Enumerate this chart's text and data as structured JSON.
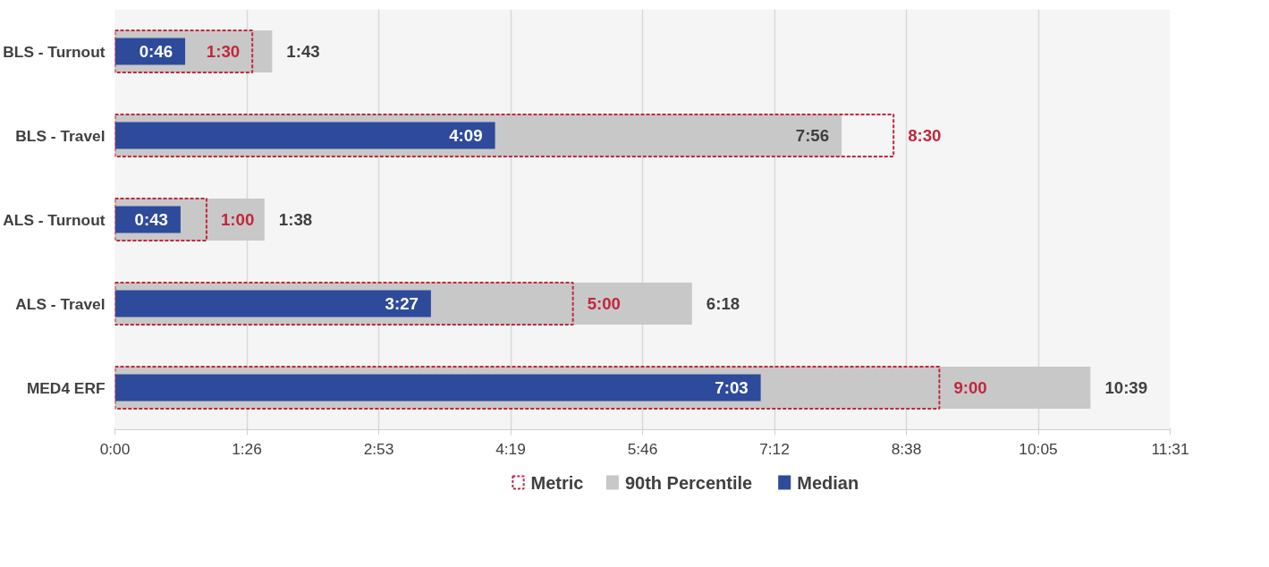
{
  "chart_data": {
    "type": "bar",
    "orientation": "horizontal",
    "categories": [
      "BLS - Turnout",
      "BLS - Travel",
      "ALS - Turnout",
      "ALS - Travel",
      "MED4 ERF"
    ],
    "xlim": [
      0,
      691.2
    ],
    "xticks": [
      {
        "value": 0,
        "label": "0:00"
      },
      {
        "value": 86.4,
        "label": "1:26"
      },
      {
        "value": 172.8,
        "label": "2:53"
      },
      {
        "value": 259.2,
        "label": "4:19"
      },
      {
        "value": 345.6,
        "label": "5:46"
      },
      {
        "value": 432,
        "label": "7:12"
      },
      {
        "value": 518.4,
        "label": "8:38"
      },
      {
        "value": 604.8,
        "label": "10:05"
      },
      {
        "value": 691.2,
        "label": "11:31"
      }
    ],
    "grid": "x",
    "legend": "bottom",
    "series": [
      {
        "name": "Metric",
        "color": "#c0283c",
        "line_style": "dashed",
        "values": [
          90,
          510,
          60,
          300,
          540
        ],
        "value_labels": [
          "1:30",
          "8:30",
          "1:00",
          "5:00",
          "9:00"
        ]
      },
      {
        "name": "90th Percentile",
        "color": "#c8c8c8",
        "values": [
          103,
          476,
          98,
          378,
          639
        ],
        "value_labels": [
          "1:43",
          "7:56",
          "1:38",
          "6:18",
          "10:39"
        ]
      },
      {
        "name": "Median",
        "color": "#2e4a9b",
        "values": [
          46,
          249,
          43,
          207,
          423
        ],
        "value_labels": [
          "0:46",
          "4:09",
          "0:43",
          "3:27",
          "7:03"
        ]
      }
    ]
  }
}
